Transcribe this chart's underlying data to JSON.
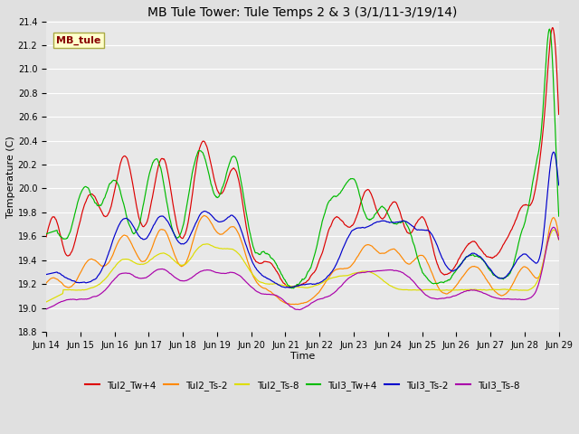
{
  "title": "MB Tule Tower: Tule Temps 2 & 3 (3/1/11-3/19/14)",
  "xlabel": "Time",
  "ylabel": "Temperature (C)",
  "ylim": [
    18.8,
    21.4
  ],
  "background_color": "#e0e0e0",
  "plot_bg_color": "#e8e8e8",
  "grid_color": "#ffffff",
  "x_tick_labels": [
    "Jun 14",
    "Jun 15",
    "Jun 16",
    "Jun 17",
    "Jun 18",
    "Jun 19",
    "Jun 20",
    "Jun 21",
    "Jun 22",
    "Jun 23",
    "Jun 24",
    "Jun 25",
    "Jun 26",
    "Jun 27",
    "Jun 28",
    "Jun 29"
  ],
  "series": [
    {
      "name": "Tul2_Tw+4",
      "color": "#dd0000"
    },
    {
      "name": "Tul2_Ts-2",
      "color": "#ff8800"
    },
    {
      "name": "Tul2_Ts-8",
      "color": "#dddd00"
    },
    {
      "name": "Tul3_Tw+4",
      "color": "#00bb00"
    },
    {
      "name": "Tul3_Ts-2",
      "color": "#0000cc"
    },
    {
      "name": "Tul3_Ts-8",
      "color": "#aa00aa"
    }
  ],
  "annotation_box": {
    "text": "MB_tule",
    "facecolor": "#ffffcc",
    "edgecolor": "#aaaa44",
    "textcolor": "#880000",
    "fontsize": 8,
    "fontweight": "bold"
  },
  "title_fontsize": 10,
  "axis_fontsize": 8,
  "tick_fontsize": 7,
  "legend_fontsize": 7.5
}
